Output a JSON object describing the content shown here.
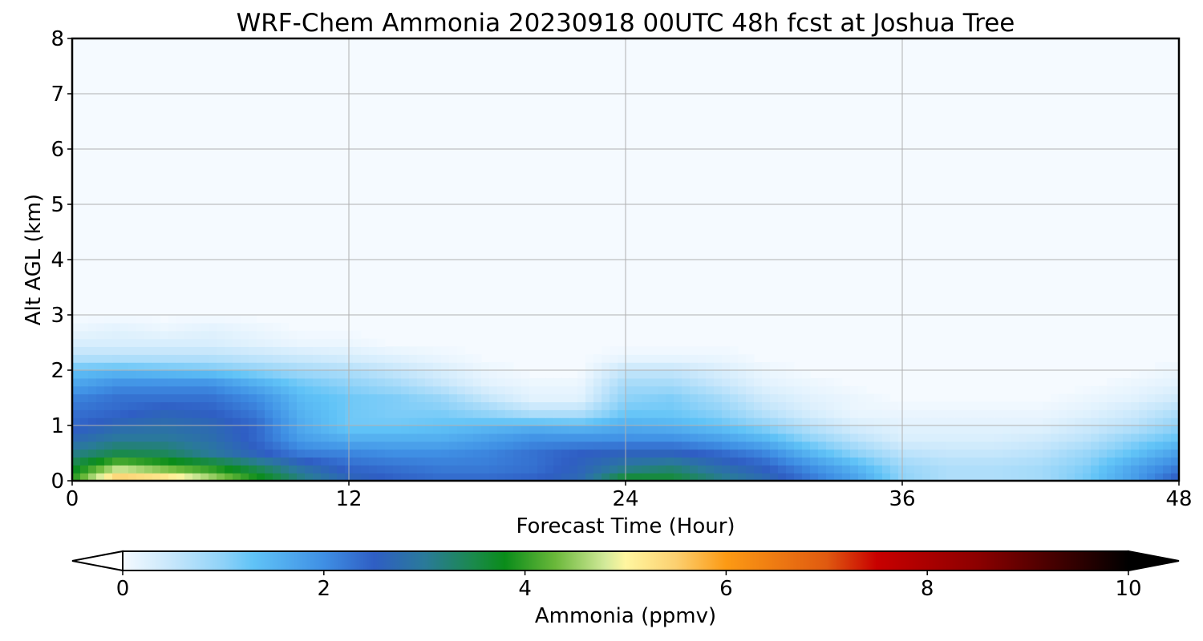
{
  "chart_data": {
    "type": "heatmap",
    "title": "WRF-Chem Ammonia  20230918 00UTC 48h fcst at Joshua Tree",
    "xlabel": "Forecast Time (Hour)",
    "ylabel": "Alt AGL (km)",
    "xlim": [
      0,
      48
    ],
    "ylim": [
      0,
      8
    ],
    "x_ticks": [
      "0",
      "12",
      "24",
      "36",
      "48"
    ],
    "y_ticks": [
      "0",
      "1",
      "2",
      "3",
      "4",
      "5",
      "6",
      "7",
      "8"
    ],
    "grid": true,
    "x_hours": [
      0,
      2,
      4,
      6,
      8,
      10,
      12,
      14,
      16,
      18,
      20,
      22,
      24,
      26,
      28,
      30,
      32,
      34,
      36,
      38,
      40,
      42,
      44,
      46,
      48
    ],
    "altitudes_km": [
      0.0,
      0.25,
      0.5,
      0.75,
      1.0,
      1.25,
      1.5,
      1.75,
      2.0,
      2.25,
      2.5,
      2.75,
      3.0,
      3.5,
      4.0,
      5.0,
      6.0,
      7.0,
      8.0
    ],
    "values_ppmv": [
      [
        4.0,
        5.8,
        5.6,
        4.8,
        4.0,
        3.2,
        2.7,
        2.5,
        2.4,
        2.4,
        2.5,
        2.7,
        3.8,
        3.7,
        3.2,
        2.8,
        2.3,
        1.8,
        1.0,
        0.7,
        0.7,
        0.8,
        1.2,
        1.8,
        2.6
      ],
      [
        3.6,
        4.6,
        4.2,
        3.9,
        3.4,
        2.8,
        2.4,
        2.3,
        2.2,
        2.2,
        2.3,
        2.6,
        3.0,
        3.2,
        2.8,
        2.5,
        2.0,
        1.5,
        0.9,
        0.7,
        0.7,
        0.8,
        1.1,
        1.7,
        2.2
      ],
      [
        3.1,
        3.5,
        3.4,
        3.0,
        2.6,
        2.2,
        2.1,
        2.0,
        2.0,
        2.1,
        2.3,
        2.5,
        2.6,
        2.6,
        2.4,
        2.1,
        1.5,
        1.0,
        0.6,
        0.5,
        0.5,
        0.6,
        0.9,
        1.3,
        1.8
      ],
      [
        2.7,
        3.0,
        3.0,
        2.8,
        2.4,
        1.8,
        1.6,
        1.6,
        1.6,
        1.8,
        2.0,
        2.0,
        2.0,
        2.0,
        1.8,
        1.5,
        1.0,
        0.6,
        0.3,
        0.3,
        0.3,
        0.4,
        0.6,
        1.0,
        1.3
      ],
      [
        2.4,
        2.7,
        2.8,
        2.7,
        2.4,
        1.6,
        1.2,
        1.2,
        1.3,
        1.4,
        1.5,
        1.4,
        1.6,
        1.5,
        1.3,
        1.0,
        0.6,
        0.3,
        0.2,
        0.2,
        0.2,
        0.2,
        0.4,
        0.6,
        1.0
      ],
      [
        2.3,
        2.4,
        2.6,
        2.5,
        2.2,
        1.5,
        1.2,
        1.1,
        1.1,
        0.9,
        0.6,
        0.6,
        1.2,
        1.2,
        1.0,
        0.6,
        0.3,
        0.1,
        0.1,
        0.1,
        0.1,
        0.1,
        0.2,
        0.4,
        0.7
      ],
      [
        2.1,
        2.3,
        2.3,
        2.3,
        2.0,
        1.4,
        1.2,
        1.1,
        0.9,
        0.5,
        0.2,
        0.2,
        1.0,
        1.1,
        0.8,
        0.4,
        0.2,
        0.1,
        0.0,
        0.0,
        0.0,
        0.0,
        0.1,
        0.2,
        0.4
      ],
      [
        1.7,
        2.0,
        2.0,
        2.0,
        1.6,
        1.2,
        1.0,
        0.8,
        0.5,
        0.2,
        0.1,
        0.1,
        0.8,
        0.8,
        0.5,
        0.2,
        0.1,
        0.0,
        0.0,
        0.0,
        0.0,
        0.0,
        0.0,
        0.1,
        0.2
      ],
      [
        1.3,
        1.4,
        1.3,
        1.2,
        1.0,
        0.8,
        0.7,
        0.5,
        0.3,
        0.1,
        0.0,
        0.0,
        0.5,
        0.5,
        0.3,
        0.1,
        0.0,
        0.0,
        0.0,
        0.0,
        0.0,
        0.0,
        0.0,
        0.0,
        0.1
      ],
      [
        0.6,
        0.6,
        0.6,
        0.6,
        0.5,
        0.4,
        0.3,
        0.2,
        0.1,
        0.0,
        0.0,
        0.0,
        0.1,
        0.1,
        0.1,
        0.0,
        0.0,
        0.0,
        0.0,
        0.0,
        0.0,
        0.0,
        0.0,
        0.0,
        0.0
      ],
      [
        0.3,
        0.3,
        0.3,
        0.3,
        0.2,
        0.1,
        0.1,
        0.0,
        0.0,
        0.0,
        0.0,
        0.0,
        0.0,
        0.0,
        0.0,
        0.0,
        0.0,
        0.0,
        0.0,
        0.0,
        0.0,
        0.0,
        0.0,
        0.0,
        0.0
      ],
      [
        0.1,
        0.2,
        0.1,
        0.2,
        0.1,
        0.0,
        0.0,
        0.0,
        0.0,
        0.0,
        0.0,
        0.0,
        0.0,
        0.0,
        0.0,
        0.0,
        0.0,
        0.0,
        0.0,
        0.0,
        0.0,
        0.0,
        0.0,
        0.0,
        0.0
      ],
      [
        0.0,
        0.0,
        0.0,
        0.0,
        0.0,
        0.0,
        0.0,
        0.0,
        0.0,
        0.0,
        0.0,
        0.0,
        0.0,
        0.0,
        0.0,
        0.0,
        0.0,
        0.0,
        0.0,
        0.0,
        0.0,
        0.0,
        0.0,
        0.0,
        0.0
      ],
      [
        0.0,
        0.0,
        0.0,
        0.0,
        0.0,
        0.0,
        0.0,
        0.0,
        0.0,
        0.0,
        0.0,
        0.0,
        0.0,
        0.0,
        0.0,
        0.0,
        0.0,
        0.0,
        0.0,
        0.0,
        0.0,
        0.0,
        0.0,
        0.0,
        0.0
      ],
      [
        0.0,
        0.0,
        0.0,
        0.0,
        0.0,
        0.0,
        0.0,
        0.0,
        0.0,
        0.0,
        0.0,
        0.0,
        0.0,
        0.0,
        0.0,
        0.0,
        0.0,
        0.0,
        0.0,
        0.0,
        0.0,
        0.0,
        0.0,
        0.0,
        0.0
      ],
      [
        0.0,
        0.0,
        0.0,
        0.0,
        0.0,
        0.0,
        0.0,
        0.0,
        0.0,
        0.0,
        0.0,
        0.0,
        0.0,
        0.0,
        0.0,
        0.0,
        0.0,
        0.0,
        0.0,
        0.0,
        0.0,
        0.0,
        0.0,
        0.0,
        0.0
      ],
      [
        0.0,
        0.0,
        0.0,
        0.0,
        0.0,
        0.0,
        0.0,
        0.0,
        0.0,
        0.0,
        0.0,
        0.0,
        0.0,
        0.0,
        0.0,
        0.0,
        0.0,
        0.0,
        0.0,
        0.0,
        0.0,
        0.0,
        0.0,
        0.0,
        0.0
      ],
      [
        0.0,
        0.0,
        0.0,
        0.0,
        0.0,
        0.0,
        0.0,
        0.0,
        0.0,
        0.0,
        0.0,
        0.0,
        0.0,
        0.0,
        0.0,
        0.0,
        0.0,
        0.0,
        0.0,
        0.0,
        0.0,
        0.0,
        0.0,
        0.0,
        0.0
      ],
      [
        0.0,
        0.0,
        0.0,
        0.0,
        0.0,
        0.0,
        0.0,
        0.0,
        0.0,
        0.0,
        0.0,
        0.0,
        0.0,
        0.0,
        0.0,
        0.0,
        0.0,
        0.0,
        0.0,
        0.0,
        0.0,
        0.0,
        0.0,
        0.0,
        0.0
      ]
    ],
    "colorbar": {
      "label": "Ammonia  (ppmv)",
      "min": 0,
      "max": 10,
      "ticks": [
        "0",
        "2",
        "4",
        "6",
        "8",
        "10"
      ],
      "extend": "both",
      "color_stops": [
        {
          "value": 0.0,
          "color": "#f5faff"
        },
        {
          "value": 0.5,
          "color": "#c5e6fb"
        },
        {
          "value": 1.0,
          "color": "#8ed2f8"
        },
        {
          "value": 1.3,
          "color": "#60c3f7"
        },
        {
          "value": 2.0,
          "color": "#3f8fe4"
        },
        {
          "value": 2.5,
          "color": "#2f5ec4"
        },
        {
          "value": 3.0,
          "color": "#2a7a9a"
        },
        {
          "value": 3.5,
          "color": "#1a8a4a"
        },
        {
          "value": 3.8,
          "color": "#0a8c1a"
        },
        {
          "value": 4.3,
          "color": "#6ab83a"
        },
        {
          "value": 4.8,
          "color": "#d3ea9a"
        },
        {
          "value": 5.0,
          "color": "#fff6a0"
        },
        {
          "value": 5.5,
          "color": "#fcd070"
        },
        {
          "value": 6.0,
          "color": "#fc9a14"
        },
        {
          "value": 7.0,
          "color": "#e05a10"
        },
        {
          "value": 7.5,
          "color": "#c80000"
        },
        {
          "value": 8.5,
          "color": "#8c0000"
        },
        {
          "value": 10.0,
          "color": "#000000"
        }
      ]
    }
  }
}
